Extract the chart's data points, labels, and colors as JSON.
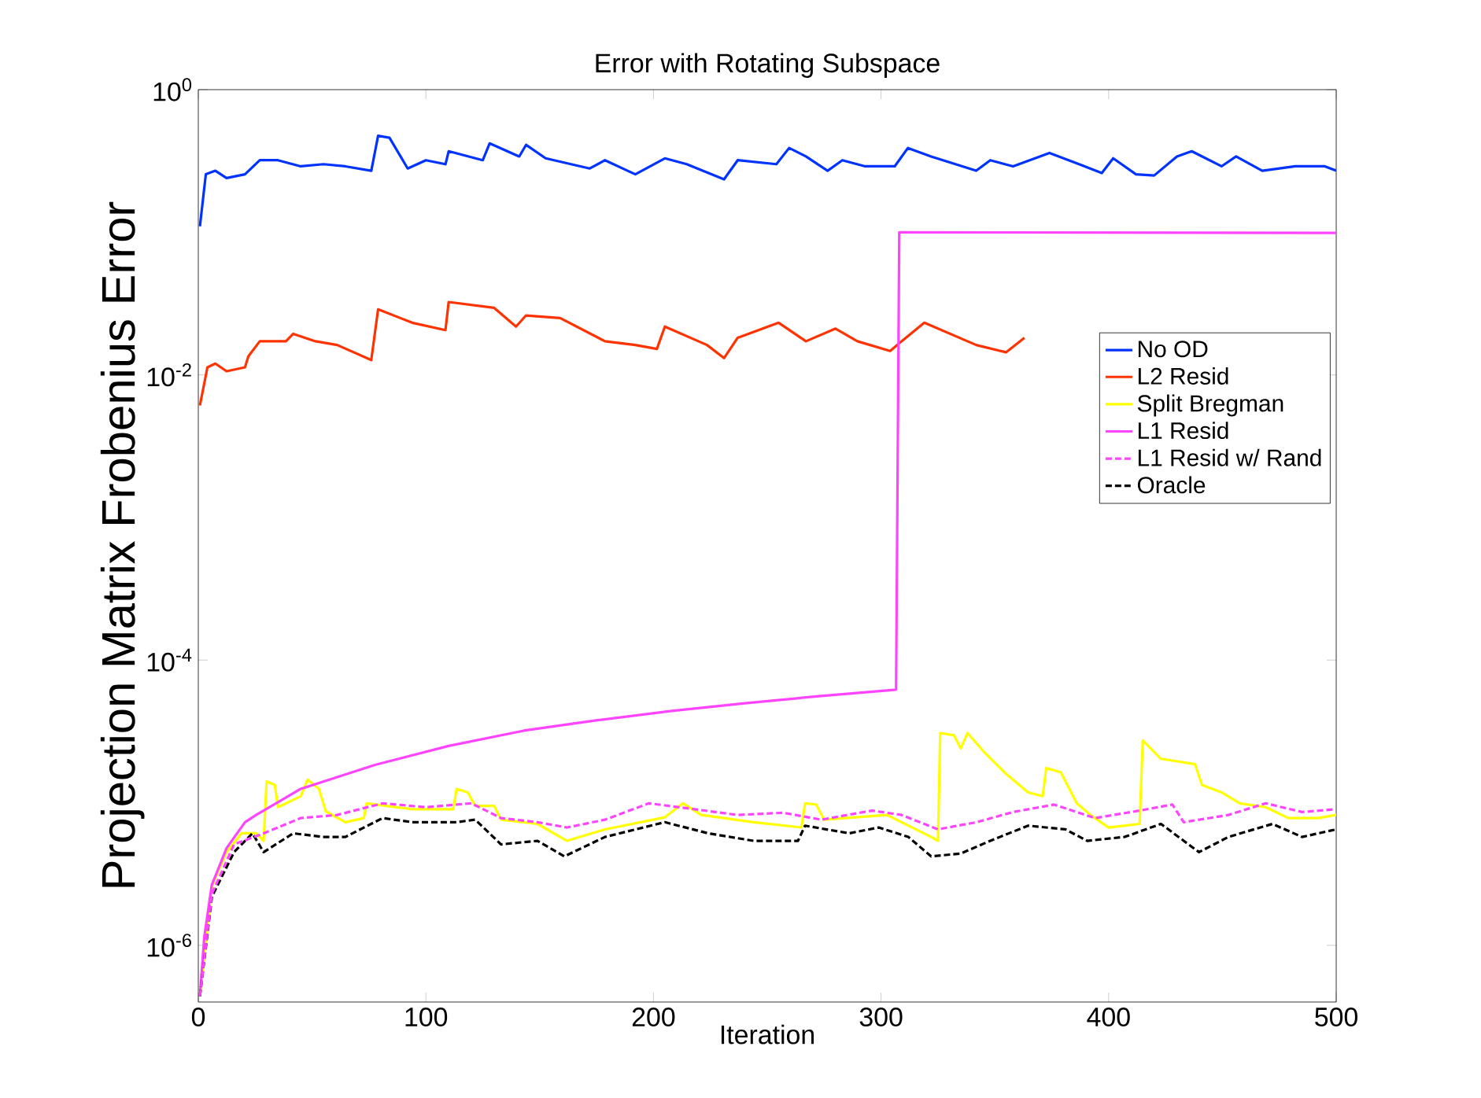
{
  "chart_data": {
    "type": "line",
    "title": "Error with Rotating Subspace",
    "xlabel": "Iteration",
    "ylabel": "Projection Matrix Frobenius Error",
    "log": "y",
    "xlim": [
      0,
      500
    ],
    "ylim": [
      4e-07,
      1
    ],
    "xticks": [
      0,
      100,
      200,
      300,
      400,
      500
    ],
    "yticks": [
      {
        "value": 1e-06,
        "label": "10$^{-6}$"
      },
      {
        "value": 0.0001,
        "label": "10$^{-4}$"
      },
      {
        "value": 0.01,
        "label": "10$^{-2}$"
      },
      {
        "value": 1,
        "label": "10$^{0}$"
      }
    ],
    "grid": false,
    "legend": "right",
    "marker": "none",
    "series": [
      {
        "name": "No OD",
        "color": "#0033ff",
        "line_style": "solid",
        "x": [
          0.7,
          3.3,
          7.5,
          12.4,
          20.5,
          27,
          35,
          45,
          55,
          64.6,
          76,
          79,
          84,
          92,
          100,
          108.6,
          110,
          125,
          128,
          141,
          144,
          152.6,
          172,
          178.7,
          192,
          205,
          214.6,
          231,
          237,
          254,
          259.6,
          267,
          276.5,
          283,
          293,
          306,
          311.8,
          322,
          341.8,
          348,
          358,
          374,
          387,
          397,
          402,
          412,
          420,
          430,
          436.5,
          449.6,
          456,
          467.5,
          482,
          495,
          500
        ],
        "values": [
          0.11,
          0.255,
          0.27,
          0.24,
          0.255,
          0.32,
          0.32,
          0.29,
          0.3,
          0.29,
          0.27,
          0.475,
          0.46,
          0.28,
          0.32,
          0.3,
          0.37,
          0.32,
          0.42,
          0.34,
          0.41,
          0.33,
          0.28,
          0.32,
          0.255,
          0.33,
          0.3,
          0.235,
          0.32,
          0.3,
          0.39,
          0.34,
          0.27,
          0.32,
          0.29,
          0.29,
          0.39,
          0.34,
          0.27,
          0.32,
          0.29,
          0.36,
          0.3,
          0.26,
          0.33,
          0.255,
          0.25,
          0.34,
          0.37,
          0.29,
          0.34,
          0.27,
          0.29,
          0.29,
          0.27
        ]
      },
      {
        "name": "L2 Resid",
        "color": "#ff3300",
        "line_style": "solid",
        "x": [
          0.7,
          4,
          7.5,
          12.4,
          20.5,
          22,
          27,
          38.5,
          41.7,
          51.5,
          61,
          76,
          79,
          94,
          108.6,
          110,
          130,
          139.6,
          144,
          159,
          178.7,
          192,
          201.5,
          205,
          223.5,
          231,
          237,
          255,
          267,
          280,
          289.6,
          304,
          309,
          319,
          341.8,
          354.9,
          363
        ],
        "values": [
          0.0061,
          0.0113,
          0.012,
          0.0106,
          0.0113,
          0.0135,
          0.0172,
          0.0172,
          0.0194,
          0.0172,
          0.0162,
          0.0127,
          0.0288,
          0.0232,
          0.0206,
          0.0324,
          0.0295,
          0.0218,
          0.0261,
          0.025,
          0.0172,
          0.0162,
          0.0152,
          0.0218,
          0.0162,
          0.0131,
          0.0182,
          0.0232,
          0.0172,
          0.0211,
          0.0172,
          0.0147,
          0.0172,
          0.0232,
          0.0162,
          0.0144,
          0.0182
        ]
      },
      {
        "name": "Split Bregman",
        "color": "#ffff00",
        "line_style": "solid",
        "x": [
          0.7,
          6,
          12.4,
          19,
          25.4,
          28.7,
          30,
          33.6,
          35,
          45,
          48,
          53,
          56,
          64.6,
          72.7,
          74,
          94,
          112,
          113.5,
          118.4,
          121.7,
          130,
          133,
          149,
          162,
          178.7,
          205,
          213,
          221,
          244,
          265,
          266.6,
          271.5,
          275,
          302.6,
          322,
          325,
          326,
          332,
          335,
          338,
          345,
          355,
          364.6,
          371,
          372.6,
          379,
          386,
          392,
          400,
          413.6,
          415,
          423,
          438,
          441,
          449.6,
          457.6,
          469,
          479,
          492,
          500
        ],
        "values": [
          4.4e-07,
          2.6e-06,
          4.5e-06,
          6.1e-06,
          6.1e-06,
          5.4e-06,
          1.41e-05,
          1.33e-05,
          9.3e-06,
          1.11e-05,
          1.45e-05,
          1.25e-05,
          8.7e-06,
          7.3e-06,
          7.8e-06,
          9.9e-06,
          9e-06,
          9e-06,
          1.25e-05,
          1.18e-05,
          9.5e-06,
          9.5e-06,
          7.6e-06,
          7.1e-06,
          5.4e-06,
          6.5e-06,
          7.9e-06,
          9.9e-06,
          8.2e-06,
          7.3e-06,
          6.7e-06,
          9.9e-06,
          9.7e-06,
          7.6e-06,
          8.2e-06,
          5.75e-06,
          5.4e-06,
          3.08e-05,
          2.97e-05,
          2.4e-05,
          3.08e-05,
          2.29e-05,
          1.59e-05,
          1.18e-05,
          1.11e-05,
          1.75e-05,
          1.63e-05,
          9.9e-06,
          8.2e-06,
          6.7e-06,
          7.1e-06,
          2.73e-05,
          2.03e-05,
          1.86e-05,
          1.33e-05,
          1.18e-05,
          9.9e-06,
          9.3e-06,
          7.8e-06,
          7.8e-06,
          8.2e-06
        ]
      },
      {
        "name": "L1 Resid",
        "color": "#ff44ff",
        "line_style": "solid",
        "x": [
          0.7,
          2.6,
          5.9,
          12.4,
          20.5,
          25.4,
          45,
          77.6,
          110,
          143,
          176,
          208,
          241,
          273.7,
          306.6,
          308,
          500
        ],
        "values": [
          4.4e-07,
          1.14e-06,
          2.64e-06,
          4.8e-06,
          7.3e-06,
          8.2e-06,
          1.25e-05,
          1.84e-05,
          2.5e-05,
          3.2e-05,
          3.8e-05,
          4.4e-05,
          5e-05,
          5.6e-05,
          6.2e-05,
          0.1,
          0.099
        ]
      },
      {
        "name": "L1 Resid w/ Rand",
        "color": "#ff44ff",
        "line_style": "dashed",
        "x": [
          0.7,
          6,
          15.7,
          28.7,
          45,
          61,
          81,
          100,
          120,
          133,
          149,
          162,
          178.7,
          198,
          218,
          237,
          257,
          273.7,
          296,
          309,
          325,
          342,
          358,
          376,
          394,
          413.6,
          428,
          433,
          452.6,
          469,
          485,
          500
        ],
        "values": [
          4.4e-07,
          2.3e-06,
          5.1e-06,
          6.1e-06,
          7.8e-06,
          8.2e-06,
          9.9e-06,
          9.3e-06,
          9.9e-06,
          7.8e-06,
          7.3e-06,
          6.7e-06,
          7.6e-06,
          9.9e-06,
          9e-06,
          8.2e-06,
          8.5e-06,
          7.6e-06,
          8.8e-06,
          8.2e-06,
          6.5e-06,
          7.3e-06,
          8.6e-06,
          9.7e-06,
          7.8e-06,
          8.8e-06,
          9.7e-06,
          7.3e-06,
          8.2e-06,
          9.9e-06,
          8.6e-06,
          9e-06
        ]
      },
      {
        "name": "Oracle",
        "color": "#000000",
        "line_style": "dashed",
        "x": [
          0.7,
          6,
          15.7,
          23.8,
          28.7,
          41.7,
          54.8,
          64.6,
          81,
          94,
          113.5,
          121.7,
          133,
          149,
          160.8,
          178.7,
          205,
          224,
          244,
          263.5,
          266.6,
          286,
          299,
          312,
          322,
          335,
          348,
          364.6,
          381,
          390.6,
          407,
          423,
          433,
          439.7,
          452.6,
          472,
          485,
          500
        ],
        "values": [
          4.4e-07,
          2.2e-06,
          4.5e-06,
          6.1e-06,
          4.5e-06,
          6.1e-06,
          5.75e-06,
          5.75e-06,
          7.8e-06,
          7.3e-06,
          7.3e-06,
          7.6e-06,
          5.1e-06,
          5.4e-06,
          4.2e-06,
          5.75e-06,
          7.3e-06,
          6.1e-06,
          5.4e-06,
          5.4e-06,
          6.9e-06,
          6.1e-06,
          6.7e-06,
          5.75e-06,
          4.2e-06,
          4.4e-06,
          5.4e-06,
          6.9e-06,
          6.5e-06,
          5.4e-06,
          5.75e-06,
          7.1e-06,
          5.4e-06,
          4.5e-06,
          5.75e-06,
          7.1e-06,
          5.75e-06,
          6.5e-06
        ]
      }
    ]
  }
}
